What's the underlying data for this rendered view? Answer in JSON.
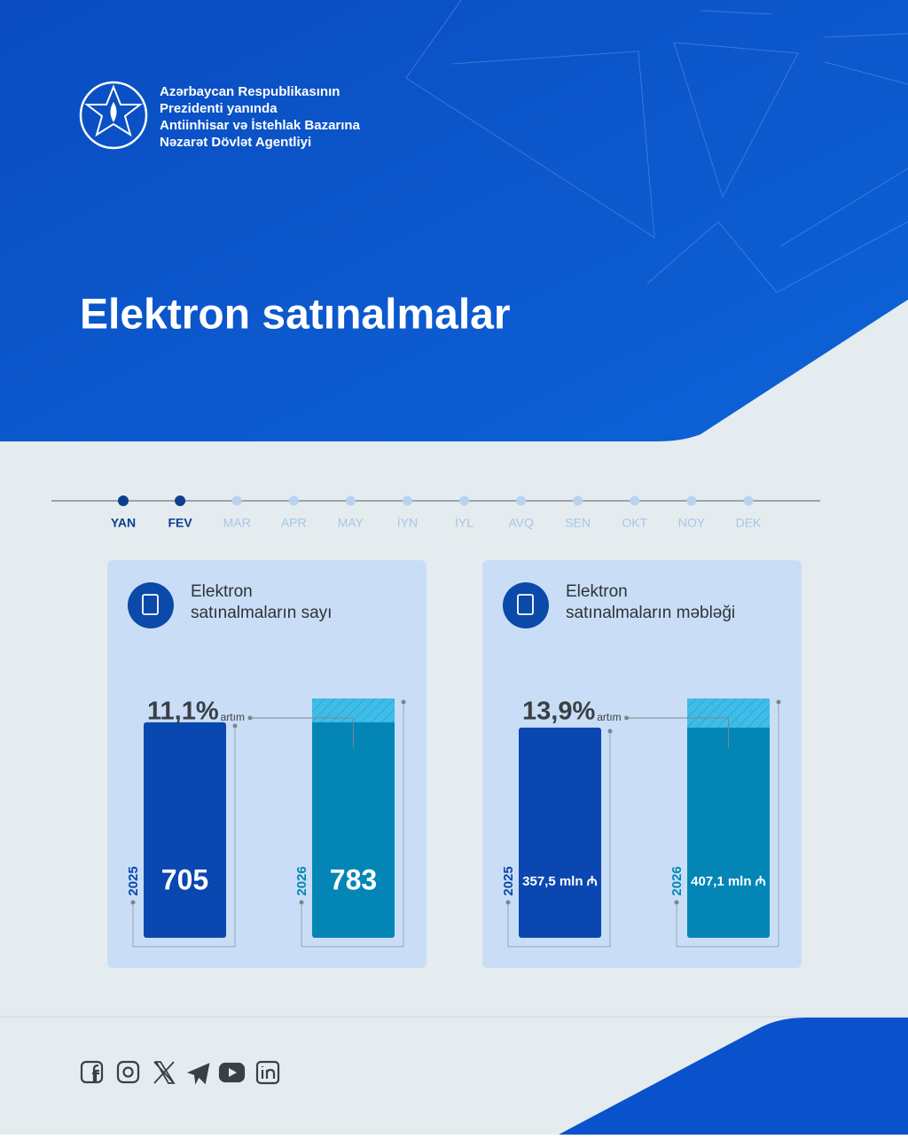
{
  "header": {
    "org_lines": [
      "Azərbaycan Respublikasının",
      "Prezidenti yanında",
      "Antiinhisar və İstehlak Bazarına",
      "Nəzarət Dövlət Agentliyi"
    ]
  },
  "title": "Elektron satınalmalar",
  "timeline": {
    "months": [
      {
        "label": "YAN",
        "active": true
      },
      {
        "label": "FEV",
        "active": true
      },
      {
        "label": "MAR",
        "active": false
      },
      {
        "label": "APR",
        "active": false
      },
      {
        "label": "MAY",
        "active": false
      },
      {
        "label": "İYN",
        "active": false
      },
      {
        "label": "İYL",
        "active": false
      },
      {
        "label": "AVQ",
        "active": false
      },
      {
        "label": "SEN",
        "active": false
      },
      {
        "label": "OKT",
        "active": false
      },
      {
        "label": "NOY",
        "active": false
      },
      {
        "label": "DEK",
        "active": false
      }
    ]
  },
  "chart_data": [
    {
      "type": "bar",
      "title_lines": [
        "Elektron",
        "satınalmaların sayı"
      ],
      "categories": [
        "2025",
        "2026"
      ],
      "values": [
        705,
        783
      ],
      "colors": [
        "#0a47b0",
        "#0386b6"
      ],
      "increase_color": "#3fbde8",
      "growth": {
        "label": "11,1%",
        "text": "artım"
      }
    },
    {
      "type": "bar",
      "title_lines": [
        "Elektron",
        "satınalmaların məbləği"
      ],
      "categories": [
        "2025",
        "2026"
      ],
      "values": [
        357.5,
        407.1
      ],
      "value_labels": [
        "357,5 mln ₼",
        "407,1 mln ₼"
      ],
      "colors": [
        "#0a47b0",
        "#0386b6"
      ],
      "increase_color": "#3fbde8",
      "growth": {
        "label": "13,9%",
        "text": "artım"
      }
    }
  ]
}
